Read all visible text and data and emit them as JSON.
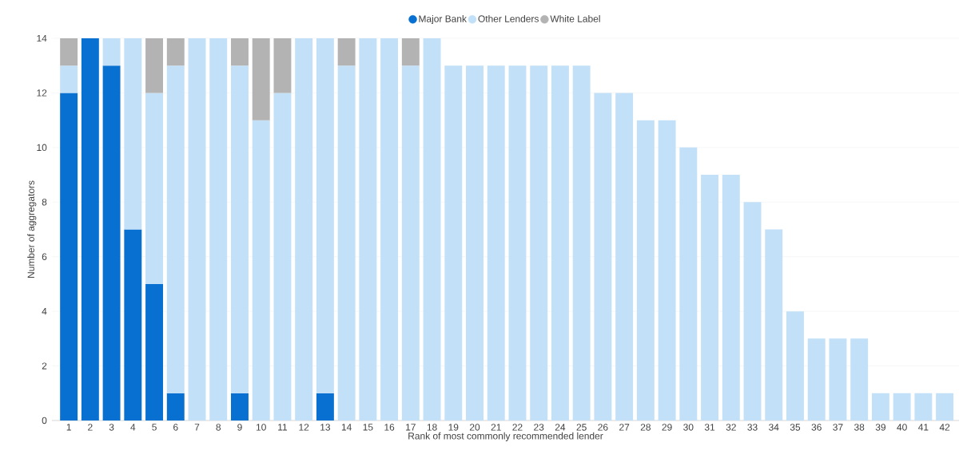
{
  "chart_data": {
    "type": "bar",
    "stacked": true,
    "xlabel": "Rank of most commonly recommended lender",
    "ylabel": "Number of aggregators",
    "categories": [
      "1",
      "2",
      "3",
      "4",
      "5",
      "6",
      "7",
      "8",
      "9",
      "10",
      "11",
      "12",
      "13",
      "14",
      "15",
      "16",
      "17",
      "18",
      "19",
      "20",
      "21",
      "22",
      "23",
      "24",
      "25",
      "26",
      "27",
      "28",
      "29",
      "30",
      "31",
      "32",
      "33",
      "34",
      "35",
      "36",
      "37",
      "38",
      "39",
      "40",
      "41",
      "42"
    ],
    "series": [
      {
        "name": "Major Bank",
        "color": "#0770d0",
        "values": [
          12,
          14,
          13,
          7,
          5,
          1,
          null,
          null,
          1,
          null,
          null,
          null,
          1,
          null,
          null,
          null,
          null,
          null,
          null,
          null,
          null,
          null,
          null,
          null,
          null,
          null,
          null,
          null,
          null,
          null,
          null,
          null,
          null,
          null,
          null,
          null,
          null,
          null,
          null,
          null,
          null,
          null
        ]
      },
      {
        "name": "Other Lenders",
        "color": "#c2e0f7",
        "values": [
          1,
          null,
          1,
          7,
          7,
          12,
          14,
          14,
          12,
          11,
          12,
          14,
          13,
          13,
          14,
          14,
          13,
          14,
          13,
          13,
          13,
          13,
          13,
          13,
          13,
          12,
          12,
          11,
          11,
          10,
          9,
          9,
          8,
          7,
          4,
          3,
          3,
          3,
          1,
          1,
          1,
          1
        ]
      },
      {
        "name": "White Label",
        "color": "#b3b3b3",
        "values": [
          1,
          null,
          null,
          null,
          2,
          1,
          null,
          null,
          1,
          3,
          2,
          null,
          null,
          1,
          null,
          null,
          1,
          null,
          null,
          null,
          null,
          null,
          null,
          null,
          null,
          null,
          null,
          null,
          null,
          null,
          null,
          null,
          null,
          null,
          null,
          null,
          null,
          null,
          null,
          null,
          null,
          null
        ]
      }
    ],
    "ylim": [
      0,
      14
    ],
    "yticks": [
      0,
      2,
      4,
      6,
      8,
      10,
      12,
      14
    ],
    "grid": "y",
    "legend": "top"
  }
}
